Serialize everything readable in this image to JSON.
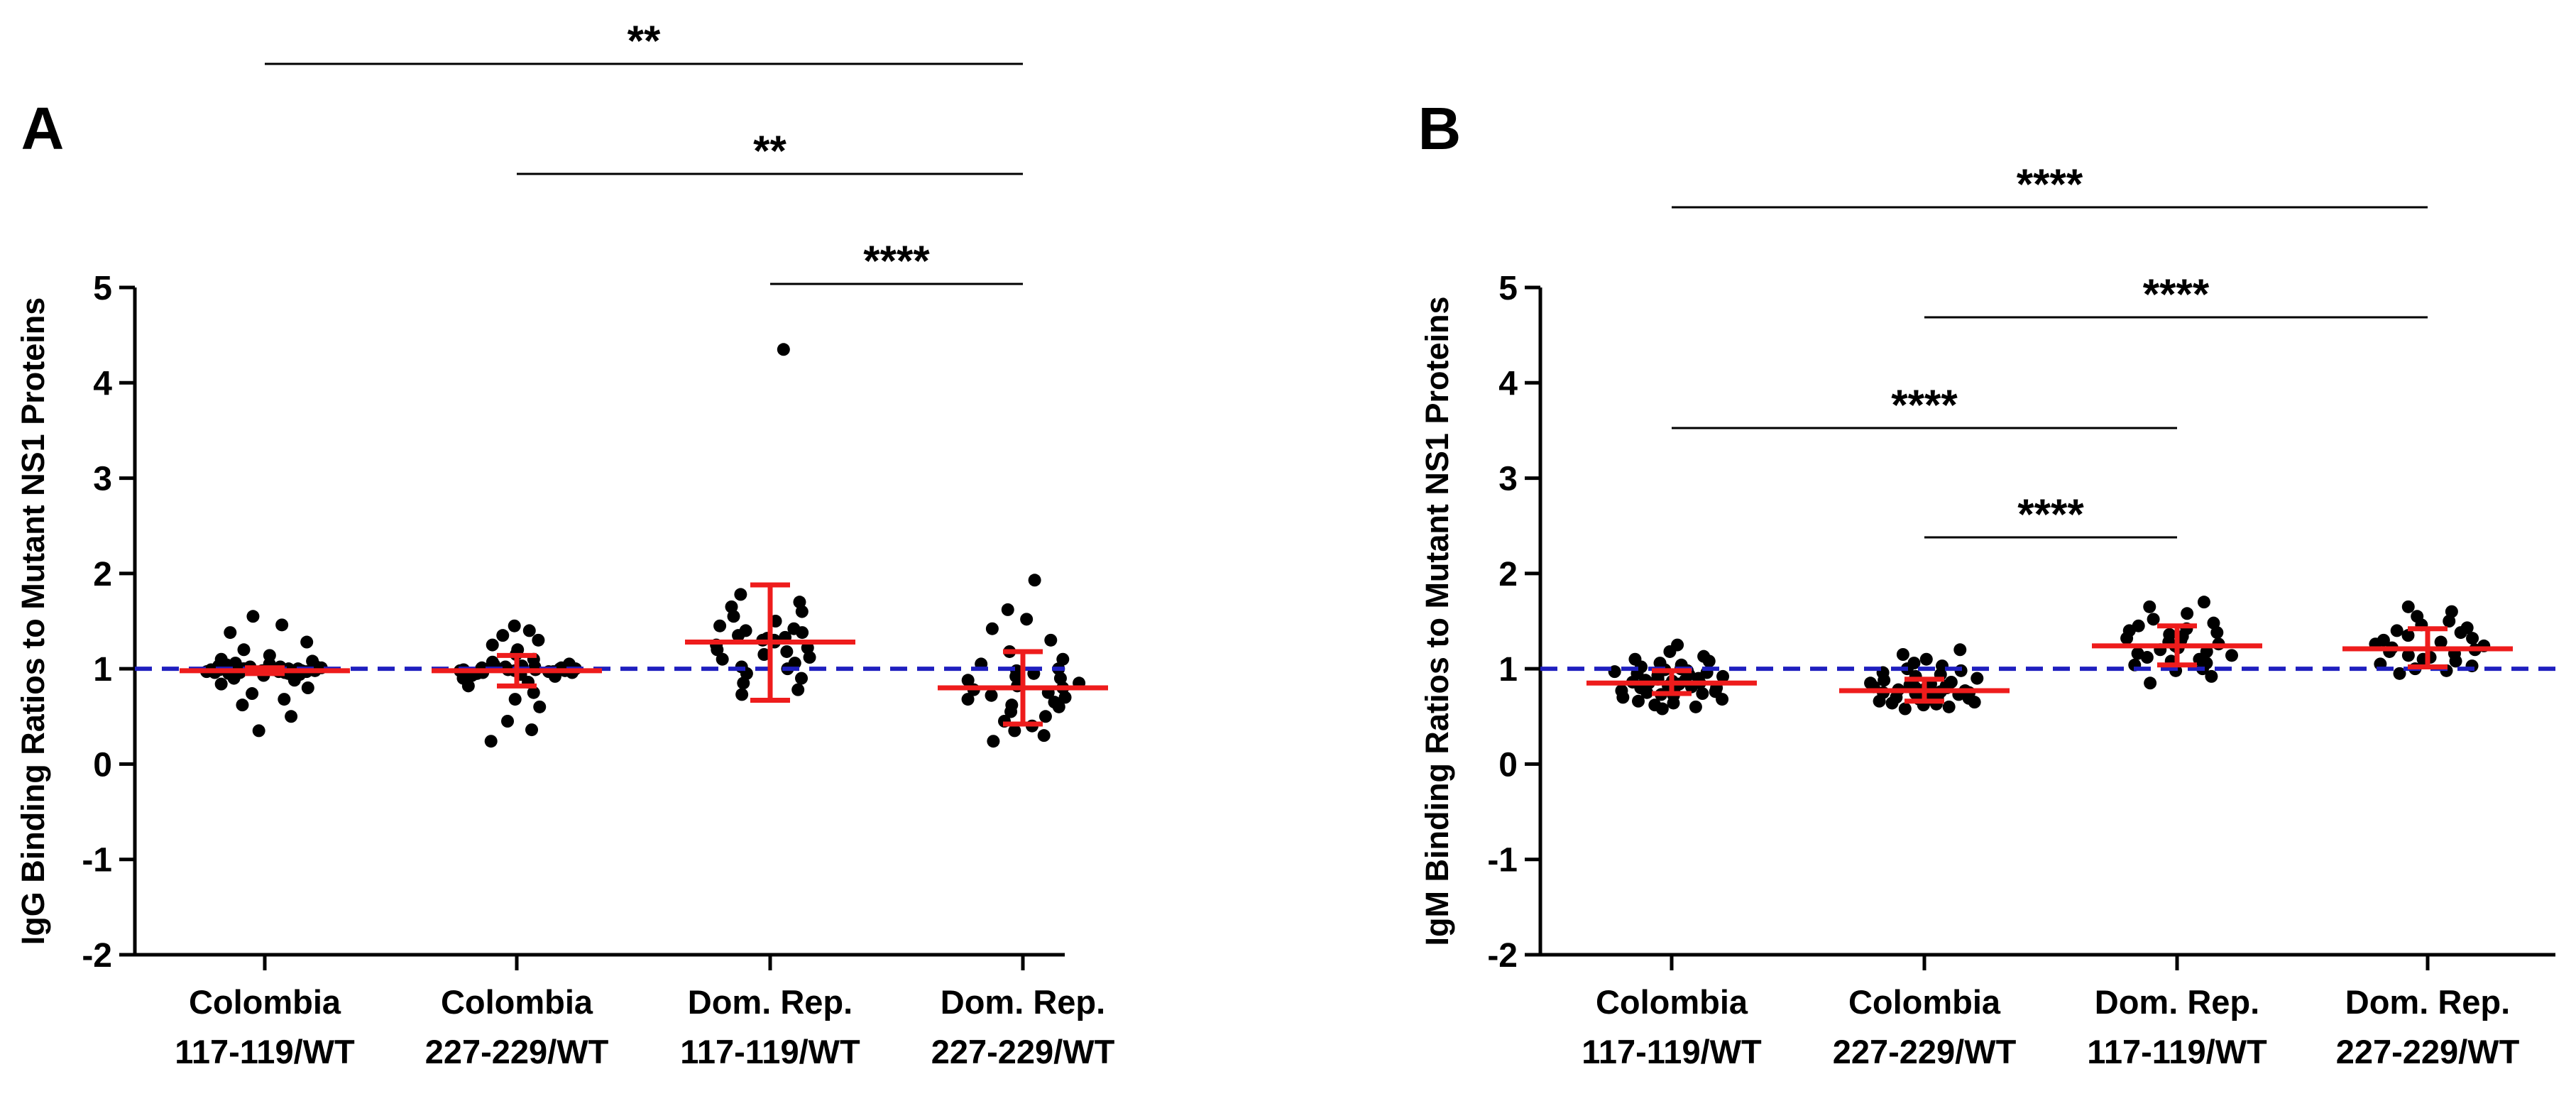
{
  "chart_data": [
    {
      "type": "scatter",
      "panel_label": "A",
      "ylabel": "IgG Binding Ratios to Mutant NS1 Proteins",
      "ylim": [
        -2,
        5
      ],
      "yticks": [
        5,
        4,
        3,
        2,
        1,
        0,
        -1,
        -2
      ],
      "reference_line": 1,
      "reference_color": "#1f1fbf",
      "point_color": "#000000",
      "summary_color": "#ee1c1c",
      "categories": [
        {
          "line1": "Colombia",
          "line2": "117-119/WT"
        },
        {
          "line1": "Colombia",
          "line2": "227-229/WT"
        },
        {
          "line1": "Dom. Rep.",
          "line2": "117-119/WT"
        },
        {
          "line1": "Dom. Rep.",
          "line2": "227-229/WT"
        }
      ],
      "groups": [
        {
          "mean": 0.98,
          "sd_low": 0.95,
          "sd_high": 1.01,
          "points": [
            0.35,
            0.5,
            0.62,
            0.68,
            0.74,
            0.8,
            0.84,
            0.88,
            0.9,
            0.92,
            0.93,
            0.94,
            0.95,
            0.95,
            0.96,
            0.96,
            0.96,
            0.97,
            0.97,
            0.97,
            0.97,
            0.98,
            0.98,
            0.98,
            0.98,
            0.98,
            0.99,
            0.99,
            0.99,
            0.99,
            1.0,
            1.0,
            1.0,
            1.0,
            1.0,
            1.01,
            1.01,
            1.01,
            1.02,
            1.02,
            1.03,
            1.03,
            1.04,
            1.05,
            1.06,
            1.08,
            1.1,
            1.14,
            1.2,
            1.28,
            1.38,
            1.46,
            1.55
          ]
        },
        {
          "mean": 0.98,
          "sd_low": 0.82,
          "sd_high": 1.14,
          "points": [
            0.24,
            0.36,
            0.45,
            0.6,
            0.68,
            0.75,
            0.82,
            0.86,
            0.9,
            0.92,
            0.93,
            0.94,
            0.95,
            0.96,
            0.96,
            0.97,
            0.97,
            0.97,
            0.98,
            0.98,
            0.98,
            0.98,
            0.99,
            0.99,
            0.99,
            1.0,
            1.0,
            1.0,
            1.0,
            1.01,
            1.01,
            1.02,
            1.02,
            1.03,
            1.04,
            1.05,
            1.07,
            1.1,
            1.15,
            1.2,
            1.25,
            1.3,
            1.35,
            1.4,
            1.45
          ]
        },
        {
          "mean": 1.28,
          "sd_low": 0.67,
          "sd_high": 1.88,
          "points": [
            0.73,
            0.78,
            0.85,
            0.9,
            0.95,
            1.0,
            1.02,
            1.06,
            1.1,
            1.12,
            1.15,
            1.18,
            1.2,
            1.22,
            1.25,
            1.28,
            1.3,
            1.3,
            1.32,
            1.33,
            1.35,
            1.38,
            1.4,
            1.42,
            1.45,
            1.5,
            1.55,
            1.6,
            1.65,
            1.7,
            1.78,
            4.35
          ]
        },
        {
          "mean": 0.8,
          "sd_low": 0.42,
          "sd_high": 1.18,
          "points": [
            0.24,
            0.3,
            0.35,
            0.4,
            0.45,
            0.5,
            0.55,
            0.6,
            0.62,
            0.65,
            0.68,
            0.7,
            0.72,
            0.75,
            0.78,
            0.8,
            0.82,
            0.85,
            0.88,
            0.9,
            0.92,
            0.95,
            0.98,
            1.0,
            1.05,
            1.1,
            1.18,
            1.3,
            1.42,
            1.52,
            1.62,
            1.93
          ]
        }
      ],
      "significance": [
        {
          "from": 0,
          "to": 3,
          "label": "**"
        },
        {
          "from": 1,
          "to": 3,
          "label": "**"
        },
        {
          "from": 2,
          "to": 3,
          "label": "****"
        }
      ]
    },
    {
      "type": "scatter",
      "panel_label": "B",
      "ylabel": "IgM Binding Ratios to Mutant NS1 Proteins",
      "ylim": [
        -2,
        5
      ],
      "yticks": [
        5,
        4,
        3,
        2,
        1,
        0,
        -1,
        -2
      ],
      "reference_line": 1,
      "reference_color": "#1f1fbf",
      "point_color": "#000000",
      "summary_color": "#ee1c1c",
      "categories": [
        {
          "line1": "Colombia",
          "line2": "117-119/WT"
        },
        {
          "line1": "Colombia",
          "line2": "227-229/WT"
        },
        {
          "line1": "Dom. Rep.",
          "line2": "117-119/WT"
        },
        {
          "line1": "Dom. Rep.",
          "line2": "227-229/WT"
        }
      ],
      "groups": [
        {
          "mean": 0.85,
          "sd_low": 0.74,
          "sd_high": 0.98,
          "points": [
            0.58,
            0.6,
            0.62,
            0.64,
            0.66,
            0.68,
            0.7,
            0.72,
            0.73,
            0.74,
            0.75,
            0.76,
            0.77,
            0.78,
            0.79,
            0.8,
            0.8,
            0.81,
            0.82,
            0.83,
            0.83,
            0.84,
            0.85,
            0.85,
            0.86,
            0.87,
            0.88,
            0.88,
            0.89,
            0.9,
            0.91,
            0.92,
            0.93,
            0.94,
            0.95,
            0.96,
            0.97,
            0.98,
            0.99,
            1.0,
            1.02,
            1.04,
            1.06,
            1.08,
            1.1,
            1.13,
            1.18,
            1.25
          ]
        },
        {
          "mean": 0.77,
          "sd_low": 0.66,
          "sd_high": 0.89,
          "points": [
            0.58,
            0.6,
            0.62,
            0.63,
            0.64,
            0.65,
            0.66,
            0.67,
            0.68,
            0.69,
            0.7,
            0.7,
            0.71,
            0.72,
            0.73,
            0.73,
            0.74,
            0.75,
            0.75,
            0.76,
            0.77,
            0.77,
            0.78,
            0.79,
            0.8,
            0.8,
            0.81,
            0.82,
            0.83,
            0.84,
            0.85,
            0.86,
            0.88,
            0.9,
            0.92,
            0.94,
            0.96,
            0.98,
            1.0,
            1.03,
            1.06,
            1.1,
            1.15,
            1.2
          ]
        },
        {
          "mean": 1.24,
          "sd_low": 1.04,
          "sd_high": 1.45,
          "points": [
            0.85,
            0.92,
            0.98,
            1.0,
            1.04,
            1.06,
            1.08,
            1.1,
            1.12,
            1.14,
            1.16,
            1.18,
            1.2,
            1.22,
            1.24,
            1.26,
            1.28,
            1.3,
            1.32,
            1.34,
            1.36,
            1.38,
            1.4,
            1.42,
            1.45,
            1.48,
            1.52,
            1.58,
            1.65,
            1.7
          ]
        },
        {
          "mean": 1.21,
          "sd_low": 1.02,
          "sd_high": 1.42,
          "points": [
            0.95,
            0.98,
            1.0,
            1.03,
            1.05,
            1.08,
            1.1,
            1.12,
            1.14,
            1.16,
            1.18,
            1.2,
            1.22,
            1.24,
            1.26,
            1.28,
            1.3,
            1.32,
            1.35,
            1.38,
            1.4,
            1.43,
            1.46,
            1.5,
            1.55,
            1.6,
            1.65
          ]
        }
      ],
      "significance": [
        {
          "from": 0,
          "to": 3,
          "label": "****"
        },
        {
          "from": 1,
          "to": 3,
          "label": "****"
        },
        {
          "from": 0,
          "to": 2,
          "label": "****"
        },
        {
          "from": 1,
          "to": 2,
          "label": "****"
        }
      ]
    }
  ]
}
